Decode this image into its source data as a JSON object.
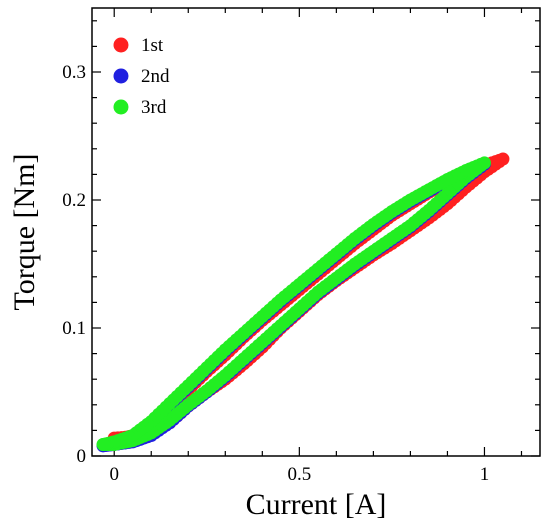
{
  "chart_data": {
    "type": "scatter",
    "title": "",
    "xlabel": "Current [A]",
    "ylabel": "Torque [Nm]",
    "xlim": [
      -0.06,
      1.15
    ],
    "ylim": [
      0.0,
      0.35
    ],
    "xticks": [
      0,
      0.5,
      1
    ],
    "xtick_labels": [
      "0",
      "0.5",
      "1"
    ],
    "yticks": [
      0,
      0.1,
      0.2,
      0.3
    ],
    "ytick_labels": [
      "0",
      "0.1",
      "0.2",
      "0.3"
    ],
    "grid": false,
    "legend_position": "top-left",
    "series": [
      {
        "name": "1st",
        "color": "#ff2020",
        "x": [
          0.0,
          0.05,
          0.1,
          0.15,
          0.2,
          0.25,
          0.3,
          0.35,
          0.4,
          0.45,
          0.5,
          0.55,
          0.6,
          0.65,
          0.7,
          0.75,
          0.8,
          0.85,
          0.9,
          0.95,
          1.0,
          1.05,
          1.0,
          0.95,
          0.9,
          0.85,
          0.8,
          0.75,
          0.7,
          0.65,
          0.6,
          0.55,
          0.5,
          0.45,
          0.4,
          0.35,
          0.3,
          0.25,
          0.2,
          0.15,
          0.1,
          0.05,
          0.0
        ],
        "y": [
          0.014,
          0.015,
          0.018,
          0.026,
          0.039,
          0.05,
          0.06,
          0.072,
          0.085,
          0.1,
          0.113,
          0.126,
          0.137,
          0.147,
          0.157,
          0.166,
          0.176,
          0.186,
          0.197,
          0.21,
          0.222,
          0.232,
          0.227,
          0.221,
          0.214,
          0.206,
          0.197,
          0.188,
          0.177,
          0.166,
          0.154,
          0.142,
          0.13,
          0.118,
          0.106,
          0.093,
          0.079,
          0.066,
          0.052,
          0.038,
          0.024,
          0.016,
          0.012
        ]
      },
      {
        "name": "2nd",
        "color": "#2020e0",
        "x": [
          -0.03,
          0.0,
          0.05,
          0.1,
          0.15,
          0.2,
          0.25,
          0.3,
          0.35,
          0.4,
          0.45,
          0.5,
          0.55,
          0.6,
          0.65,
          0.7,
          0.75,
          0.8,
          0.85,
          0.9,
          0.95,
          1.0,
          0.95,
          0.9,
          0.85,
          0.8,
          0.75,
          0.7,
          0.65,
          0.6,
          0.55,
          0.5,
          0.45,
          0.4,
          0.35,
          0.3,
          0.25,
          0.2,
          0.15,
          0.1,
          0.05,
          0.0,
          -0.03
        ],
        "y": [
          0.008,
          0.009,
          0.011,
          0.016,
          0.026,
          0.039,
          0.05,
          0.062,
          0.075,
          0.088,
          0.101,
          0.114,
          0.127,
          0.138,
          0.149,
          0.159,
          0.169,
          0.179,
          0.191,
          0.204,
          0.217,
          0.228,
          0.222,
          0.215,
          0.207,
          0.199,
          0.19,
          0.18,
          0.169,
          0.157,
          0.145,
          0.133,
          0.121,
          0.108,
          0.095,
          0.082,
          0.068,
          0.054,
          0.04,
          0.026,
          0.015,
          0.01,
          0.008
        ]
      },
      {
        "name": "3rd",
        "color": "#22ee22",
        "x": [
          -0.03,
          0.0,
          0.05,
          0.1,
          0.15,
          0.2,
          0.25,
          0.3,
          0.35,
          0.4,
          0.45,
          0.5,
          0.55,
          0.6,
          0.65,
          0.7,
          0.75,
          0.8,
          0.85,
          0.9,
          0.95,
          1.0,
          0.95,
          0.9,
          0.85,
          0.8,
          0.75,
          0.7,
          0.65,
          0.6,
          0.55,
          0.5,
          0.45,
          0.4,
          0.35,
          0.3,
          0.25,
          0.2,
          0.15,
          0.1,
          0.05,
          0.0,
          -0.03
        ],
        "y": [
          0.009,
          0.009,
          0.012,
          0.018,
          0.028,
          0.04,
          0.051,
          0.063,
          0.076,
          0.089,
          0.102,
          0.115,
          0.128,
          0.139,
          0.15,
          0.16,
          0.17,
          0.18,
          0.192,
          0.205,
          0.218,
          0.229,
          0.223,
          0.216,
          0.208,
          0.2,
          0.191,
          0.181,
          0.17,
          0.158,
          0.146,
          0.134,
          0.122,
          0.109,
          0.096,
          0.083,
          0.069,
          0.055,
          0.041,
          0.027,
          0.016,
          0.011,
          0.009
        ]
      }
    ]
  }
}
